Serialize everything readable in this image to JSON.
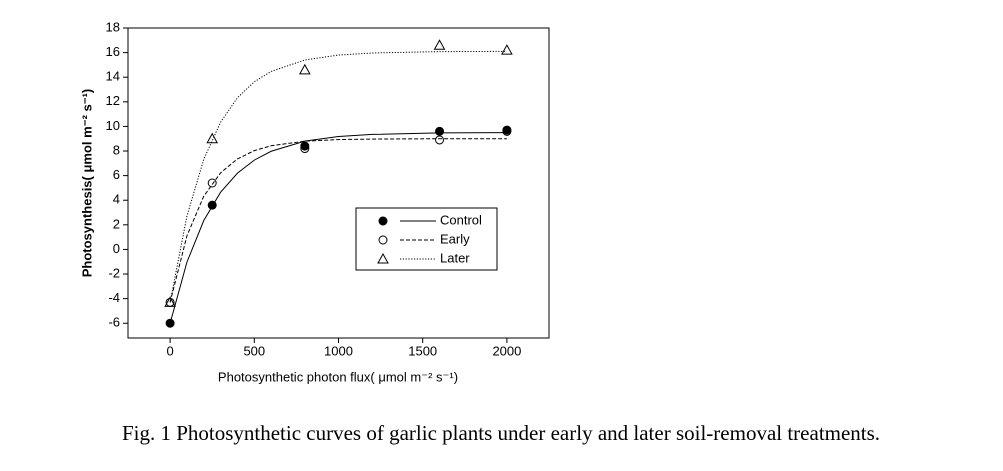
{
  "chart_data": {
    "type": "scatter",
    "caption": "Fig. 1 Photosynthetic curves of garlic plants under early and later soil-removal treatments.",
    "x_label": "Photosynthetic photon flux( μmol m⁻² s⁻¹)",
    "y_label": "Photosynthesis( μmol m⁻² s⁻¹)",
    "x": [
      0,
      250,
      800,
      1600,
      2000
    ],
    "series": [
      {
        "name": "Control",
        "color": "#000000",
        "marker": "filled-circle",
        "dash": "solid",
        "values": [
          -6,
          3.6,
          8.4,
          9.6,
          9.7
        ],
        "fit": {
          "x": [
            0,
            100,
            200,
            300,
            400,
            500,
            600,
            800,
            1000,
            1200,
            1600,
            2000
          ],
          "values": [
            -6,
            -1.03,
            2.35,
            4.65,
            6.2,
            7.26,
            7.98,
            8.8,
            9.18,
            9.35,
            9.47,
            9.5
          ]
        }
      },
      {
        "name": "Early",
        "color": "#000000",
        "marker": "open-circle",
        "dash": "dashed",
        "values": [
          -4.3,
          5.4,
          8.2,
          8.9,
          9.6
        ],
        "fit": {
          "x": [
            0,
            100,
            200,
            300,
            400,
            500,
            600,
            800,
            1000,
            1200,
            1600,
            2000
          ],
          "values": [
            -4.3,
            1.11,
            4.33,
            6.23,
            7.36,
            8.03,
            8.43,
            8.8,
            8.93,
            8.97,
            9.0,
            9.0
          ]
        }
      },
      {
        "name": "Later",
        "color": "#000000",
        "marker": "open-triangle",
        "dash": "dotted",
        "values": [
          -4.3,
          9.0,
          14.6,
          16.6,
          16.2
        ],
        "fit": {
          "x": [
            0,
            100,
            200,
            300,
            400,
            500,
            600,
            800,
            1000,
            1200,
            1600,
            2000
          ],
          "values": [
            -4.3,
            2.72,
            7.33,
            10.35,
            12.33,
            13.63,
            14.47,
            15.4,
            15.8,
            15.97,
            16.08,
            16.1
          ]
        }
      }
    ],
    "xlim": [
      -250,
      2250
    ],
    "xticks": [
      0,
      500,
      1000,
      1500,
      2000
    ],
    "ylim": [
      -7.2,
      18
    ],
    "yticks": [
      -6,
      -4,
      -2,
      0,
      2,
      4,
      6,
      8,
      10,
      12,
      14,
      16,
      18
    ],
    "grid": false,
    "legend": "lower-right"
  }
}
